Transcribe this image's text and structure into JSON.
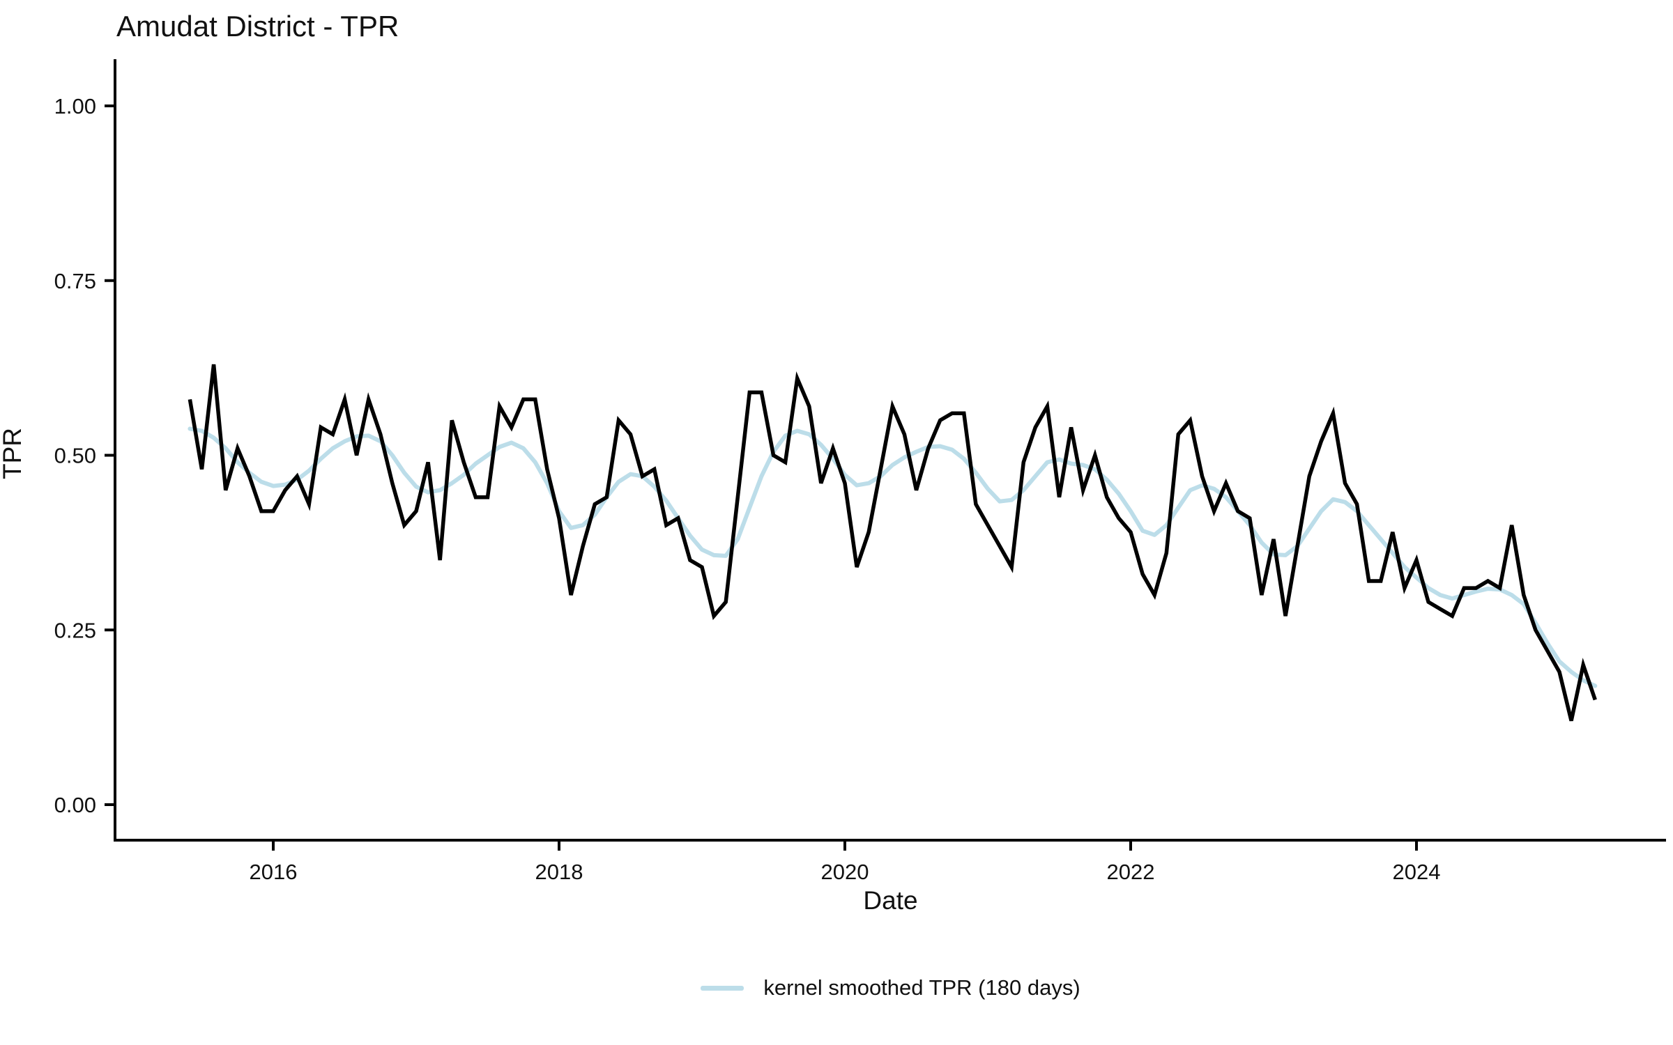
{
  "chart_data": {
    "type": "line",
    "title": "Amudat District - TPR",
    "xlabel": "Date",
    "ylabel": "TPR",
    "x_tick_labels": [
      "2016",
      "2018",
      "2020",
      "2022",
      "2024"
    ],
    "x_tick_years": [
      2016,
      2018,
      2020,
      2022,
      2024
    ],
    "y_tick_labels": [
      "0.00",
      "0.25",
      "0.50",
      "0.75",
      "1.00"
    ],
    "y_tick_values": [
      0,
      0.25,
      0.5,
      0.75,
      1
    ],
    "ylim": [
      0,
      1
    ],
    "x_range_years": [
      2015.42,
      2025.33
    ],
    "grid": "off",
    "legend_position": "bottom-center",
    "x_monthly_start": "2015-06",
    "series": [
      {
        "name": "TPR",
        "color": "#000000",
        "values": [
          0.58,
          0.48,
          0.63,
          0.45,
          0.51,
          0.47,
          0.42,
          0.42,
          0.45,
          0.47,
          0.43,
          0.54,
          0.53,
          0.58,
          0.5,
          0.58,
          0.53,
          0.46,
          0.4,
          0.42,
          0.49,
          0.35,
          0.55,
          0.49,
          0.44,
          0.44,
          0.57,
          0.54,
          0.58,
          0.58,
          0.48,
          0.41,
          0.3,
          0.37,
          0.43,
          0.44,
          0.55,
          0.53,
          0.47,
          0.48,
          0.4,
          0.41,
          0.35,
          0.34,
          0.27,
          0.29,
          0.44,
          0.59,
          0.59,
          0.5,
          0.49,
          0.61,
          0.57,
          0.46,
          0.51,
          0.46,
          0.34,
          0.39,
          0.48,
          0.57,
          0.53,
          0.45,
          0.51,
          0.55,
          0.56,
          0.56,
          0.43,
          0.4,
          0.37,
          0.34,
          0.49,
          0.54,
          0.57,
          0.44,
          0.54,
          0.45,
          0.5,
          0.44,
          0.41,
          0.39,
          0.33,
          0.3,
          0.36,
          0.53,
          0.55,
          0.47,
          0.42,
          0.46,
          0.42,
          0.41,
          0.3,
          0.38,
          0.27,
          0.37,
          0.47,
          0.52,
          0.56,
          0.46,
          0.43,
          0.32,
          0.32,
          0.39,
          0.31,
          0.35,
          0.29,
          0.28,
          0.27,
          0.31,
          0.31,
          0.32,
          0.31,
          0.4,
          0.3,
          0.25,
          0.22,
          0.19,
          0.12,
          0.2,
          0.15
        ]
      },
      {
        "name": "kernel smoothed TPR (180 days)",
        "color": "#bcdde9",
        "values": [
          0.538,
          0.535,
          0.525,
          0.51,
          0.49,
          0.475,
          0.462,
          0.456,
          0.458,
          0.465,
          0.478,
          0.495,
          0.51,
          0.52,
          0.527,
          0.528,
          0.52,
          0.5,
          0.475,
          0.455,
          0.447,
          0.45,
          0.46,
          0.472,
          0.488,
          0.5,
          0.512,
          0.518,
          0.51,
          0.49,
          0.46,
          0.42,
          0.396,
          0.4,
          0.415,
          0.44,
          0.462,
          0.473,
          0.47,
          0.455,
          0.435,
          0.41,
          0.385,
          0.365,
          0.357,
          0.356,
          0.38,
          0.425,
          0.47,
          0.505,
          0.528,
          0.535,
          0.53,
          0.515,
          0.495,
          0.472,
          0.457,
          0.46,
          0.47,
          0.486,
          0.497,
          0.505,
          0.512,
          0.513,
          0.508,
          0.495,
          0.475,
          0.452,
          0.434,
          0.436,
          0.45,
          0.47,
          0.49,
          0.494,
          0.488,
          0.486,
          0.48,
          0.465,
          0.445,
          0.42,
          0.392,
          0.386,
          0.4,
          0.425,
          0.45,
          0.457,
          0.452,
          0.44,
          0.42,
          0.4,
          0.375,
          0.358,
          0.357,
          0.37,
          0.395,
          0.42,
          0.437,
          0.433,
          0.42,
          0.4,
          0.38,
          0.36,
          0.34,
          0.325,
          0.31,
          0.3,
          0.295,
          0.3,
          0.305,
          0.309,
          0.308,
          0.3,
          0.287,
          0.26,
          0.231,
          0.205,
          0.19,
          0.178,
          0.17
        ]
      }
    ],
    "legend_entries": [
      "kernel smoothed TPR (180 days)"
    ],
    "axis_color": "#000000",
    "background_color": "#ffffff"
  }
}
